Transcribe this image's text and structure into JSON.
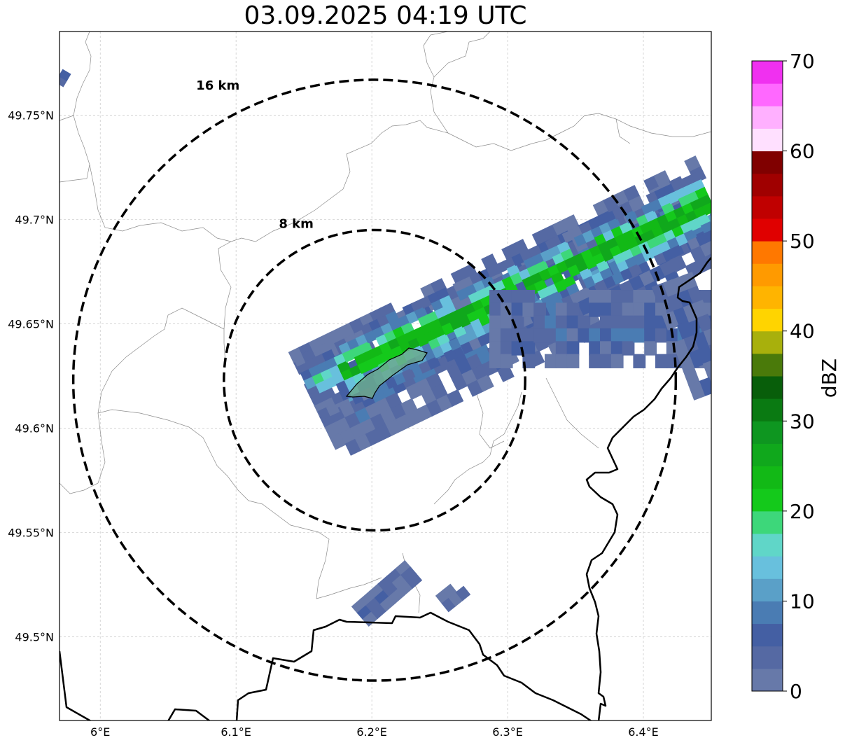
{
  "map": {
    "title": "03.09.2025 04:19 UTC",
    "extent": {
      "lon_min": 5.97,
      "lon_max": 6.45,
      "lat_min": 49.46,
      "lat_max": 49.79
    },
    "x_ticks": [
      {
        "lon": 6.0,
        "label": "6°E"
      },
      {
        "lon": 6.1,
        "label": "6.1°E"
      },
      {
        "lon": 6.2,
        "label": "6.2°E"
      },
      {
        "lon": 6.3,
        "label": "6.3°E"
      },
      {
        "lon": 6.4,
        "label": "6.4°E"
      }
    ],
    "y_ticks": [
      {
        "lat": 49.75,
        "label": "49.75°N"
      },
      {
        "lat": 49.7,
        "label": "49.7°N"
      },
      {
        "lat": 49.65,
        "label": "49.65°N"
      },
      {
        "lat": 49.6,
        "label": "49.6°N"
      },
      {
        "lat": 49.55,
        "label": "49.55°N"
      },
      {
        "lat": 49.5,
        "label": "49.5°N"
      }
    ],
    "center": {
      "lon": 6.202,
      "lat": 49.623
    },
    "range_rings": [
      {
        "radius_km": 8,
        "label": "8 km"
      },
      {
        "radius_km": 16,
        "label": "16 km"
      }
    ],
    "ring_style": {
      "color": "#000000",
      "dashed": true
    },
    "grid": true,
    "colors": {
      "border": "#000000",
      "admin": "#8c8c8c",
      "grid": "#bbbbbb",
      "outline_fill": "#6aa88a"
    }
  },
  "colorbar": {
    "label": "dBZ",
    "min": 0,
    "max": 70,
    "step": 2.5,
    "tick_labels": [
      "0",
      "10",
      "20",
      "30",
      "40",
      "50",
      "60",
      "70"
    ],
    "tick_values": [
      0,
      10,
      20,
      30,
      40,
      50,
      60,
      70
    ],
    "colors": [
      "#6779a9",
      "#5569a3",
      "#445fa3",
      "#4a7cb3",
      "#5aa0c8",
      "#68c0dd",
      "#60d6c8",
      "#3dd77a",
      "#14c91b",
      "#12b916",
      "#10a81c",
      "#0e9620",
      "#0a7a12",
      "#085e0a",
      "#4a7a0a",
      "#a8b00c",
      "#ffd400",
      "#ffb400",
      "#ff9a00",
      "#ff7800",
      "#e00000",
      "#c00000",
      "#a00000",
      "#800000",
      "#ffe0ff",
      "#ffb0ff",
      "#ff68ff",
      "#f030f0"
    ]
  }
}
